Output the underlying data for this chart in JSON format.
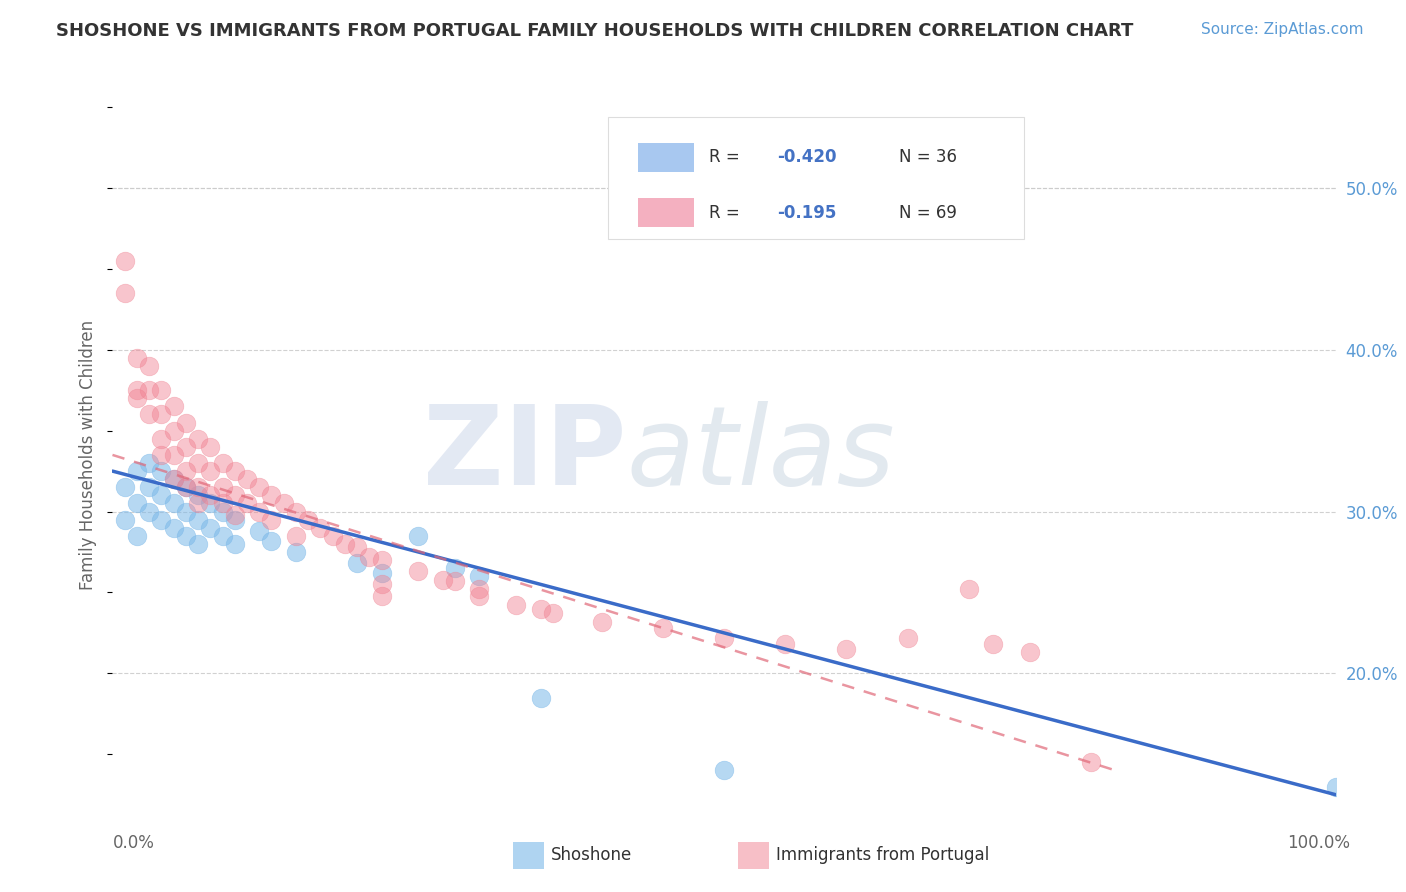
{
  "title": "SHOSHONE VS IMMIGRANTS FROM PORTUGAL FAMILY HOUSEHOLDS WITH CHILDREN CORRELATION CHART",
  "source": "Source: ZipAtlas.com",
  "ylabel": "Family Households with Children",
  "xlim": [
    0.0,
    1.0
  ],
  "ylim": [
    0.12,
    0.55
  ],
  "right_yticks": [
    0.2,
    0.3,
    0.4,
    0.5
  ],
  "right_yticklabels": [
    "20.0%",
    "30.0%",
    "40.0%",
    "50.0%"
  ],
  "shoshone_scatter": [
    [
      0.01,
      0.315
    ],
    [
      0.01,
      0.295
    ],
    [
      0.02,
      0.325
    ],
    [
      0.02,
      0.305
    ],
    [
      0.02,
      0.285
    ],
    [
      0.03,
      0.33
    ],
    [
      0.03,
      0.315
    ],
    [
      0.03,
      0.3
    ],
    [
      0.04,
      0.325
    ],
    [
      0.04,
      0.31
    ],
    [
      0.04,
      0.295
    ],
    [
      0.05,
      0.32
    ],
    [
      0.05,
      0.305
    ],
    [
      0.05,
      0.29
    ],
    [
      0.06,
      0.315
    ],
    [
      0.06,
      0.3
    ],
    [
      0.06,
      0.285
    ],
    [
      0.07,
      0.31
    ],
    [
      0.07,
      0.295
    ],
    [
      0.07,
      0.28
    ],
    [
      0.08,
      0.305
    ],
    [
      0.08,
      0.29
    ],
    [
      0.09,
      0.3
    ],
    [
      0.09,
      0.285
    ],
    [
      0.1,
      0.295
    ],
    [
      0.1,
      0.28
    ],
    [
      0.12,
      0.288
    ],
    [
      0.13,
      0.282
    ],
    [
      0.15,
      0.275
    ],
    [
      0.2,
      0.268
    ],
    [
      0.22,
      0.262
    ],
    [
      0.25,
      0.285
    ],
    [
      0.28,
      0.265
    ],
    [
      0.3,
      0.26
    ],
    [
      0.35,
      0.185
    ],
    [
      0.5,
      0.14
    ],
    [
      1.0,
      0.13
    ]
  ],
  "portugal_scatter": [
    [
      0.01,
      0.455
    ],
    [
      0.01,
      0.435
    ],
    [
      0.02,
      0.395
    ],
    [
      0.02,
      0.375
    ],
    [
      0.02,
      0.37
    ],
    [
      0.03,
      0.39
    ],
    [
      0.03,
      0.375
    ],
    [
      0.03,
      0.36
    ],
    [
      0.04,
      0.375
    ],
    [
      0.04,
      0.36
    ],
    [
      0.04,
      0.345
    ],
    [
      0.04,
      0.335
    ],
    [
      0.05,
      0.365
    ],
    [
      0.05,
      0.35
    ],
    [
      0.05,
      0.335
    ],
    [
      0.05,
      0.32
    ],
    [
      0.06,
      0.355
    ],
    [
      0.06,
      0.34
    ],
    [
      0.06,
      0.325
    ],
    [
      0.06,
      0.315
    ],
    [
      0.07,
      0.345
    ],
    [
      0.07,
      0.33
    ],
    [
      0.07,
      0.315
    ],
    [
      0.07,
      0.305
    ],
    [
      0.08,
      0.34
    ],
    [
      0.08,
      0.325
    ],
    [
      0.08,
      0.31
    ],
    [
      0.09,
      0.33
    ],
    [
      0.09,
      0.315
    ],
    [
      0.09,
      0.305
    ],
    [
      0.1,
      0.325
    ],
    [
      0.1,
      0.31
    ],
    [
      0.1,
      0.298
    ],
    [
      0.11,
      0.32
    ],
    [
      0.11,
      0.305
    ],
    [
      0.12,
      0.315
    ],
    [
      0.12,
      0.3
    ],
    [
      0.13,
      0.31
    ],
    [
      0.13,
      0.295
    ],
    [
      0.14,
      0.305
    ],
    [
      0.15,
      0.3
    ],
    [
      0.15,
      0.285
    ],
    [
      0.16,
      0.295
    ],
    [
      0.17,
      0.29
    ],
    [
      0.18,
      0.285
    ],
    [
      0.19,
      0.28
    ],
    [
      0.2,
      0.278
    ],
    [
      0.21,
      0.272
    ],
    [
      0.22,
      0.27
    ],
    [
      0.22,
      0.255
    ],
    [
      0.22,
      0.248
    ],
    [
      0.25,
      0.263
    ],
    [
      0.27,
      0.258
    ],
    [
      0.28,
      0.257
    ],
    [
      0.3,
      0.252
    ],
    [
      0.3,
      0.248
    ],
    [
      0.33,
      0.242
    ],
    [
      0.35,
      0.24
    ],
    [
      0.36,
      0.237
    ],
    [
      0.4,
      0.232
    ],
    [
      0.45,
      0.228
    ],
    [
      0.5,
      0.222
    ],
    [
      0.55,
      0.218
    ],
    [
      0.6,
      0.215
    ],
    [
      0.65,
      0.222
    ],
    [
      0.7,
      0.252
    ],
    [
      0.72,
      0.218
    ],
    [
      0.75,
      0.213
    ],
    [
      0.8,
      0.145
    ]
  ],
  "shoshone_line": {
    "x": [
      0.0,
      1.0
    ],
    "y": [
      0.325,
      0.125
    ]
  },
  "portugal_line": {
    "x": [
      0.0,
      0.82
    ],
    "y": [
      0.335,
      0.14
    ]
  },
  "shoshone_color": "#7bb8e8",
  "portugal_color": "#f08090",
  "shoshone_line_color": "#3a6bc8",
  "portugal_line_color": "#e06878",
  "grid_color": "#cccccc",
  "title_color": "#333333",
  "background_color": "#ffffff",
  "legend_R_color": "#4472c4",
  "legend_N_color": "#333333"
}
